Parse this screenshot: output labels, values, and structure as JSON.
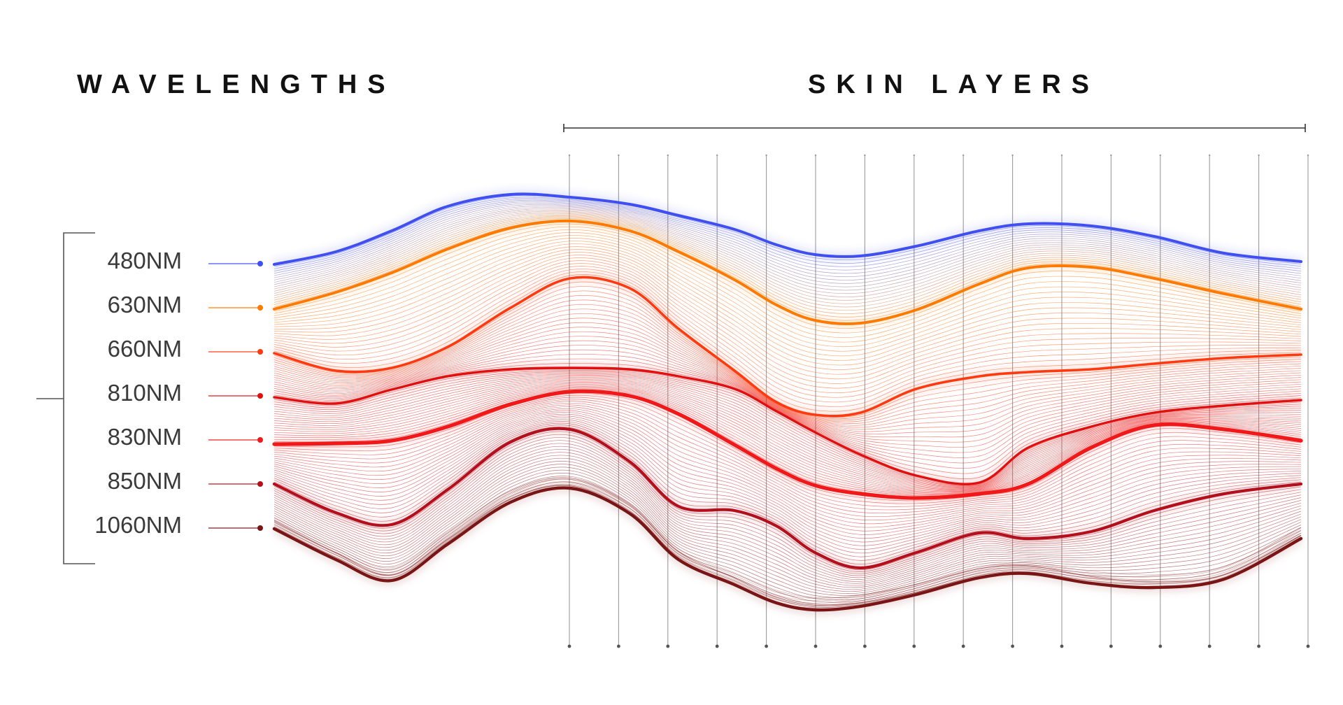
{
  "headings": {
    "wavelengths": "WAVELENGTHS",
    "skin_layers": "SKIN LAYERS"
  },
  "wavelengths": [
    {
      "label": "480NM",
      "color": "#3f4ff0"
    },
    {
      "label": "630NM",
      "color": "#ff7a00"
    },
    {
      "label": "660NM",
      "color": "#ff3a10"
    },
    {
      "label": "810NM",
      "color": "#e01010"
    },
    {
      "label": "830NM",
      "color": "#f01818"
    },
    {
      "label": "850NM",
      "color": "#b3101c"
    },
    {
      "label": "1060NM",
      "color": "#7a1515"
    }
  ],
  "skin_layers": {
    "divider_count": 16,
    "divider_color": "#8a8a8a"
  }
}
